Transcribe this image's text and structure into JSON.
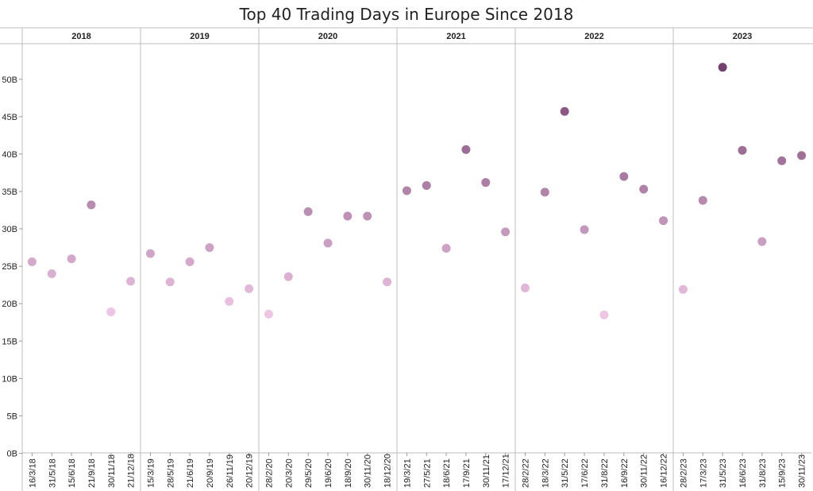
{
  "chart_data": {
    "type": "scatter",
    "title": "Top 40 Trading Days in Europe Since 2018",
    "xlabel": "",
    "ylabel": "",
    "ylim": [
      0,
      54
    ],
    "yticks": [
      0,
      5,
      10,
      15,
      20,
      25,
      30,
      35,
      40,
      45,
      50
    ],
    "ytick_labels": [
      "0B",
      "5B",
      "10B",
      "15B",
      "20B",
      "25B",
      "30B",
      "35B",
      "40B",
      "45B",
      "50B"
    ],
    "grid": false,
    "color_scale": {
      "low": "#f0c8e6",
      "high": "#733f6d",
      "min": 18,
      "max": 52
    },
    "panels": [
      {
        "year": "2018",
        "points": [
          {
            "date": "16/3/18",
            "value": 25.6
          },
          {
            "date": "31/5/18",
            "value": 24.0
          },
          {
            "date": "15/6/18",
            "value": 26.0
          },
          {
            "date": "21/9/18",
            "value": 33.2
          },
          {
            "date": "30/11/18",
            "value": 18.9
          },
          {
            "date": "21/12/18",
            "value": 23.0
          }
        ]
      },
      {
        "year": "2019",
        "points": [
          {
            "date": "15/3/19",
            "value": 26.7
          },
          {
            "date": "28/5/19",
            "value": 22.9
          },
          {
            "date": "21/6/19",
            "value": 25.6
          },
          {
            "date": "20/9/19",
            "value": 27.5
          },
          {
            "date": "26/11/19",
            "value": 20.3
          },
          {
            "date": "20/12/19",
            "value": 22.0
          }
        ]
      },
      {
        "year": "2020",
        "points": [
          {
            "date": "28/2/20",
            "value": 18.6
          },
          {
            "date": "20/3/20",
            "value": 23.6
          },
          {
            "date": "29/5/20",
            "value": 32.3
          },
          {
            "date": "19/6/20",
            "value": 28.1
          },
          {
            "date": "18/9/20",
            "value": 31.7
          },
          {
            "date": "30/11/20",
            "value": 31.7
          },
          {
            "date": "18/12/20",
            "value": 22.9
          }
        ]
      },
      {
        "year": "2021",
        "points": [
          {
            "date": "19/3/21",
            "value": 35.1
          },
          {
            "date": "27/5/21",
            "value": 35.8
          },
          {
            "date": "18/6/21",
            "value": 27.4
          },
          {
            "date": "17/9/21",
            "value": 40.6
          },
          {
            "date": "30/11/21",
            "value": 36.2
          },
          {
            "date": "17/12/21",
            "value": 29.6
          }
        ]
      },
      {
        "year": "2022",
        "points": [
          {
            "date": "28/2/22",
            "value": 22.1
          },
          {
            "date": "18/3/22",
            "value": 34.9
          },
          {
            "date": "31/5/22",
            "value": 45.7
          },
          {
            "date": "17/6/22",
            "value": 29.9
          },
          {
            "date": "31/8/22",
            "value": 18.5
          },
          {
            "date": "16/9/22",
            "value": 37.0
          },
          {
            "date": "30/11/22",
            "value": 35.3
          },
          {
            "date": "16/12/22",
            "value": 31.1
          }
        ]
      },
      {
        "year": "2023",
        "points": [
          {
            "date": "28/2/23",
            "value": 21.9
          },
          {
            "date": "17/3/23",
            "value": 33.8
          },
          {
            "date": "31/5/23",
            "value": 51.6
          },
          {
            "date": "16/6/23",
            "value": 40.5
          },
          {
            "date": "31/8/23",
            "value": 28.3
          },
          {
            "date": "15/9/23",
            "value": 39.1
          },
          {
            "date": "30/11/23",
            "value": 39.8
          }
        ]
      }
    ]
  }
}
